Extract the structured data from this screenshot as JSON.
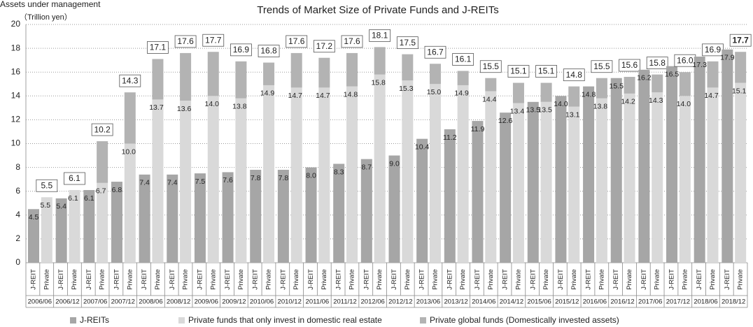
{
  "chart_data": {
    "type": "bar",
    "title": "Trends of Market Size of Private Funds  and  J-REITs",
    "y_label": "Assets under management",
    "y_unit": "（Trillion yen）",
    "categories": [
      "2006/06",
      "2006/12",
      "2007/06",
      "2007/12",
      "2008/06",
      "2008/12",
      "2009/06",
      "2009/12",
      "2010/06",
      "2010/12",
      "2011/06",
      "2011/12",
      "2012/06",
      "2012/12",
      "2013/06",
      "2013/12",
      "2014/06",
      "2014/12",
      "2015/06",
      "2015/12",
      "2016/06",
      "2016/12",
      "2017/06",
      "2017/12",
      "2018/06",
      "2018/12"
    ],
    "bar_labels": [
      "J-REIT",
      "Private"
    ],
    "series": [
      {
        "name": "J-REITs",
        "color": "#a6a6a6",
        "values": [
          4.5,
          5.4,
          6.1,
          6.8,
          7.4,
          7.4,
          7.5,
          7.6,
          7.8,
          7.8,
          8.0,
          8.3,
          8.7,
          9.0,
          10.4,
          11.2,
          11.9,
          12.6,
          13.5,
          14.0,
          14.8,
          15.5,
          16.2,
          16.5,
          17.3,
          17.9
        ],
        "value_labels": [
          "4.5",
          "5.4",
          "6.1",
          "6.8",
          "7.4",
          "7.4",
          "7.5",
          "7.6",
          "7.8",
          "7.8",
          "8.0",
          "8.3",
          "8.7",
          "9.0",
          "10.4",
          "11.2",
          "11.9",
          "12.6",
          "13.5",
          "14.0",
          "14.8",
          "15.5",
          "16.2",
          "16.5",
          "17.3",
          "17.9"
        ]
      },
      {
        "name": "Private funds that only invest in domestic real estate",
        "color": "#d9d9d9",
        "values": [
          5.5,
          6.1,
          6.7,
          10.0,
          13.7,
          13.6,
          14.0,
          13.8,
          14.9,
          14.7,
          14.7,
          14.8,
          15.8,
          15.3,
          15.0,
          14.9,
          14.4,
          13.4,
          13.5,
          13.1,
          13.8,
          14.2,
          14.3,
          14.0,
          14.7,
          15.1
        ],
        "value_labels": [
          "5.5",
          "6.1",
          "6.7",
          "10.0",
          "13.7",
          "13.6",
          "14.0",
          "13.8",
          "14.9",
          "14.7",
          "14.7",
          "14.8",
          "15.8",
          "15.3",
          "15.0",
          "14.9",
          "14.4",
          "13.4",
          "13.5",
          "13.1",
          "13.8",
          "14.2",
          "14.3",
          "14.0",
          "14.7",
          "15.1"
        ]
      },
      {
        "name": "Private global funds (Domestically invested assets)",
        "color": "#b3b3b3",
        "values": [
          0,
          0,
          3.5,
          4.3,
          3.4,
          4.0,
          3.7,
          3.1,
          1.9,
          2.9,
          2.5,
          2.8,
          2.3,
          2.2,
          1.7,
          1.2,
          1.1,
          1.7,
          1.6,
          1.7,
          1.7,
          1.4,
          1.5,
          2.0,
          2.2,
          2.6
        ]
      }
    ],
    "totals": [
      5.5,
      6.1,
      10.2,
      14.3,
      17.1,
      17.6,
      17.7,
      16.9,
      16.8,
      17.6,
      17.2,
      17.6,
      18.1,
      17.5,
      16.7,
      16.1,
      15.5,
      15.1,
      15.1,
      14.8,
      15.5,
      15.6,
      15.8,
      16.0,
      16.9,
      17.7
    ],
    "total_labels": [
      "5.5",
      "6.1",
      "10.2",
      "14.3",
      "17.1",
      "17.6",
      "17.7",
      "16.9",
      "16.8",
      "17.6",
      "17.2",
      "17.6",
      "18.1",
      "17.5",
      "16.7",
      "16.1",
      "15.5",
      "15.1",
      "15.1",
      "14.8",
      "15.5",
      "15.6",
      "15.8",
      "16.0",
      "16.9",
      "17.7"
    ],
    "ylim": [
      0,
      20
    ],
    "yticks": [
      0,
      2,
      4,
      6,
      8,
      10,
      12,
      14,
      16,
      18,
      20
    ],
    "grid": true
  }
}
